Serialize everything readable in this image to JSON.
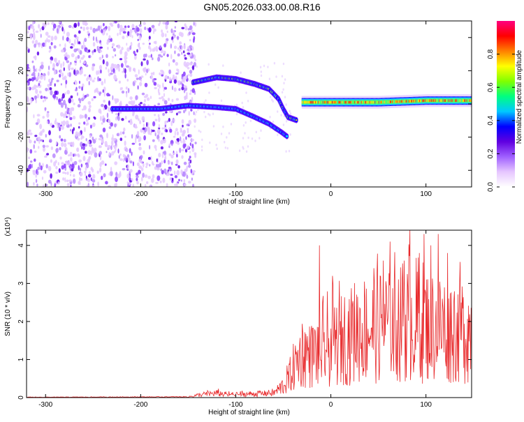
{
  "title": "GN05.2026.033.00.08.R16",
  "chart_data": [
    {
      "type": "heatmap",
      "name": "spectrogram",
      "xlabel": "Height of straight line (km)",
      "ylabel": "Frequency (Hz)",
      "xlim": [
        -320,
        148
      ],
      "ylim": [
        -50,
        50
      ],
      "xticks": [
        -300,
        -200,
        -100,
        0,
        100
      ],
      "yticks": [
        -40,
        -20,
        0,
        20,
        40
      ],
      "colorbar": {
        "label": "Normalized spectral amplitude",
        "range": [
          0,
          1
        ],
        "ticks": [
          0.0,
          0.2,
          0.4,
          0.6,
          0.8
        ],
        "tick_labels": [
          "0.0",
          "0.2",
          "0.4",
          "0.6",
          "0.8"
        ],
        "colors": [
          "#ffffff",
          "#e6c6ff",
          "#a060ff",
          "#6000e0",
          "#0000ff",
          "#00c8ff",
          "#00ff80",
          "#80ff00",
          "#ffff00",
          "#ff8000",
          "#ff0000",
          "#ff0080"
        ]
      },
      "features": [
        {
          "name": "noise-region",
          "x_range": [
            -320,
            -150
          ],
          "freq_range": [
            -50,
            50
          ],
          "amplitude": 0.05
        },
        {
          "name": "lower-branch",
          "points": [
            [
              -230,
              -3
            ],
            [
              -180,
              -3
            ],
            [
              -150,
              -1
            ],
            [
              -120,
              -2
            ],
            [
              -100,
              -3
            ],
            [
              -80,
              -8
            ],
            [
              -65,
              -12
            ],
            [
              -52,
              -17
            ],
            [
              -45,
              -20
            ]
          ],
          "amplitude": 0.2
        },
        {
          "name": "upper-branch",
          "points": [
            [
              -145,
              13
            ],
            [
              -120,
              16
            ],
            [
              -100,
              15
            ],
            [
              -80,
              12
            ],
            [
              -65,
              9
            ],
            [
              -55,
              3
            ],
            [
              -50,
              -3
            ],
            [
              -45,
              -8
            ],
            [
              -35,
              -10
            ]
          ],
          "amplitude": 0.25
        },
        {
          "name": "main-band",
          "points": [
            [
              -30,
              1
            ],
            [
              0,
              1
            ],
            [
              50,
              1
            ],
            [
              100,
              2
            ],
            [
              148,
              2
            ]
          ],
          "amplitude": 0.9
        }
      ]
    },
    {
      "type": "line",
      "name": "snr",
      "xlabel": "Height of straight line (km)",
      "ylabel": "SNR (10 * v/v)",
      "multiplier": "(x10⁴)",
      "xlim": [
        -320,
        148
      ],
      "ylim": [
        0,
        4.4
      ],
      "xticks": [
        -300,
        -200,
        -100,
        0,
        100
      ],
      "yticks": [
        0,
        1,
        2,
        3,
        4
      ],
      "color": "#e8292b",
      "envelope": {
        "x": [
          -320,
          -150,
          -140,
          -120,
          -110,
          -100,
          -60,
          -50,
          -45,
          -40,
          -30,
          -20,
          0,
          20,
          40,
          60,
          80,
          100,
          120,
          148
        ],
        "y": [
          0.01,
          0.02,
          0.08,
          0.15,
          0.1,
          0.1,
          0.15,
          0.4,
          0.6,
          0.9,
          1.5,
          1.4,
          1.7,
          2.1,
          2.3,
          2.4,
          2.5,
          2.4,
          2.3,
          2.2
        ]
      },
      "peaks": {
        "x": [
          -12,
          2,
          45,
          55,
          62,
          77,
          83,
          93,
          98,
          105,
          113,
          123
        ],
        "y": [
          4.0,
          3.2,
          3.4,
          3.6,
          4.1,
          3.6,
          4.4,
          3.8,
          4.3,
          4.0,
          4.3,
          3.8
        ]
      }
    }
  ]
}
